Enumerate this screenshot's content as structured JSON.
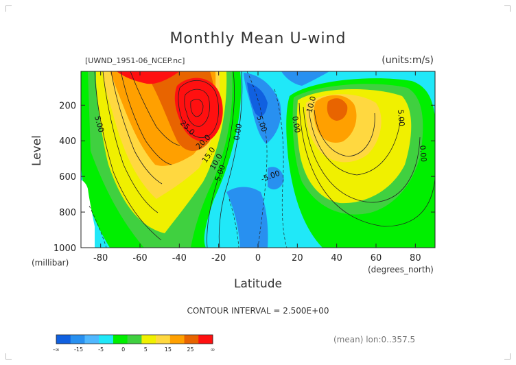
{
  "chart_data": {
    "type": "heatmap",
    "title": "Monthly Mean U-wind",
    "source_label": "[UWND_1951-06_NCEP.nc]",
    "units_label": "(units:m/s)",
    "xlabel": "Latitude",
    "x_unit": "(degrees_north)",
    "ylabel": "Level",
    "y_unit": "(millibar)",
    "xlim": [
      -90,
      90
    ],
    "ylim": [
      1000,
      10
    ],
    "x_ticks": [
      -80,
      -60,
      -40,
      -20,
      0,
      20,
      40,
      60,
      80
    ],
    "x_tick_labels": [
      "-80",
      "-60",
      "-40",
      "-20",
      "0",
      "20",
      "40",
      "60",
      "80"
    ],
    "y_ticks": [
      200,
      400,
      600,
      800,
      1000
    ],
    "y_tick_labels": [
      "200",
      "400",
      "600",
      "800",
      "1000"
    ],
    "contour_interval_label": "CONTOUR INTERVAL = 2.500E+00",
    "contour_labels": [
      "5.00",
      "25.0",
      "20.0",
      "15.0",
      "10.0",
      "5.00",
      "0.00",
      "5.00",
      "0.00",
      "-5.00",
      "10.0",
      "5.00",
      "0.00"
    ],
    "jets": [
      {
        "lat": -30,
        "level": 180,
        "peak_value": 35
      },
      {
        "lat": 40,
        "level": 180,
        "peak_value": 17.5
      }
    ],
    "colorbar": {
      "labels": [
        "-∞",
        "-15",
        "-5",
        "0",
        "5",
        "15",
        "25",
        "∞"
      ],
      "colors": [
        "#1060e0",
        "#2890f0",
        "#50b8ff",
        "#20e8f8",
        "#00ef00",
        "#40d040",
        "#f0f000",
        "#ffd840",
        "#ffa000",
        "#e86400",
        "#ff1010"
      ]
    },
    "annotation": "(mean) lon:0..357.5"
  }
}
